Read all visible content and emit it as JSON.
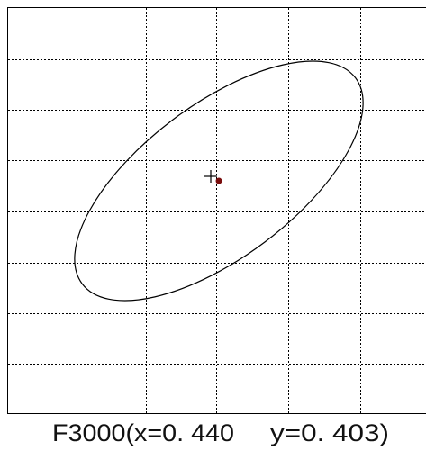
{
  "caption": {
    "label": "F3000(x=0. 440",
    "y": "y=0. 403)"
  }
}
